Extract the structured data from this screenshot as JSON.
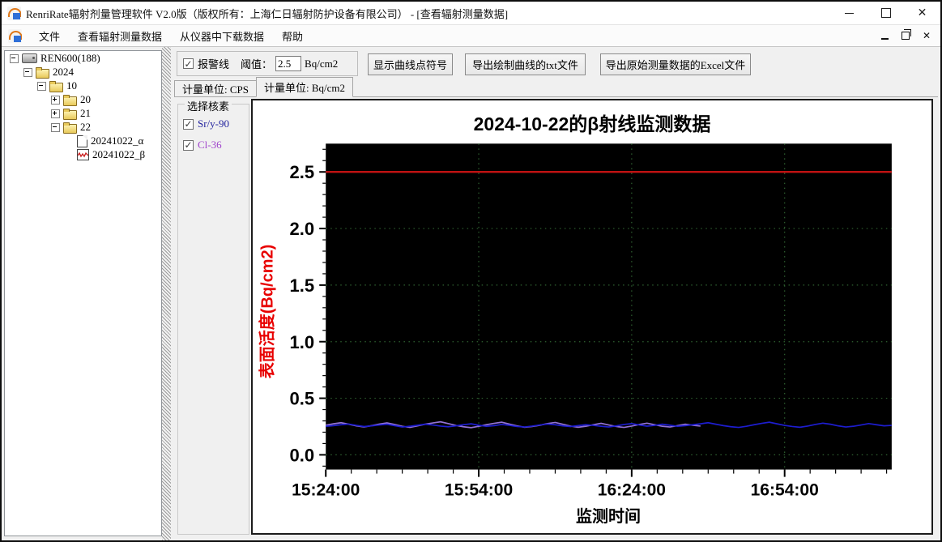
{
  "window": {
    "title": "RenriRate辐射剂量管理软件 V2.0版（版权所有：上海仁日辐射防护设备有限公司） - [查看辐射测量数据]"
  },
  "menu": {
    "items": [
      "文件",
      "查看辐射测量数据",
      "从仪器中下载数据",
      "帮助"
    ]
  },
  "tree": {
    "items": [
      {
        "label": "REN600(188)",
        "level": 0,
        "expander": "minus",
        "icon": "device"
      },
      {
        "label": "2024",
        "level": 1,
        "expander": "minus",
        "icon": "folder"
      },
      {
        "label": "10",
        "level": 2,
        "expander": "minus",
        "icon": "folder"
      },
      {
        "label": "20",
        "level": 3,
        "expander": "plus",
        "icon": "folder"
      },
      {
        "label": "21",
        "level": 3,
        "expander": "plus",
        "icon": "folder"
      },
      {
        "label": "22",
        "level": 3,
        "expander": "minus",
        "icon": "folder"
      },
      {
        "label": "20241022_α",
        "level": 4,
        "expander": "none",
        "icon": "doc"
      },
      {
        "label": "20241022_β",
        "level": 4,
        "expander": "none",
        "icon": "chart"
      }
    ]
  },
  "toolbar": {
    "alarm_checkbox_label": "报警线",
    "alarm_checked": true,
    "threshold_label": "阈值：",
    "threshold_value": "2.5",
    "threshold_unit": "Bq/cm2",
    "show_points_button": "显示曲线点符号",
    "export_txt_button": "导出绘制曲线的txt文件",
    "export_excel_button": "导出原始测量数据的Excel文件"
  },
  "tabs": [
    {
      "label": "计量单位: CPS",
      "active": false
    },
    {
      "label": "计量单位: Bq/cm2",
      "active": true
    }
  ],
  "nuclide_panel": {
    "title": "选择核素",
    "items": [
      {
        "label": "Sr/y-90",
        "checked": true,
        "color": "#22229e"
      },
      {
        "label": "Cl-36",
        "checked": true,
        "color": "#a044cc"
      }
    ]
  },
  "chart_data": {
    "type": "line",
    "title": "2024-10-22的β射线监测数据",
    "xlabel": "监测时间",
    "ylabel": "表面活度(Bq/cm2)",
    "plot_bg": "#000000",
    "grid_color": "#2f6231",
    "grid": true,
    "ylim": [
      -0.13,
      2.75
    ],
    "y_ticks": [
      0.0,
      0.5,
      1.0,
      1.5,
      2.0,
      2.5
    ],
    "y_minor_step": 0.1,
    "x_range_minutes": [
      0,
      111
    ],
    "x_ticks": [
      {
        "minute": 0,
        "label": "15:24:00"
      },
      {
        "minute": 30,
        "label": "15:54:00"
      },
      {
        "minute": 60,
        "label": "16:24:00"
      },
      {
        "minute": 90,
        "label": "16:54:00"
      }
    ],
    "x_minor_step_minutes": 5,
    "alarm_line": {
      "value": 2.5,
      "color": "#c01212"
    },
    "series": [
      {
        "name": "Cl-36",
        "color": "#9272d6",
        "x_start_min": 0,
        "x_step_min": 1.5,
        "values": [
          0.262,
          0.274,
          0.284,
          0.27,
          0.256,
          0.246,
          0.258,
          0.272,
          0.282,
          0.268,
          0.252,
          0.242,
          0.256,
          0.27,
          0.282,
          0.292,
          0.276,
          0.26,
          0.248,
          0.24,
          0.252,
          0.266,
          0.278,
          0.288,
          0.272,
          0.256,
          0.244,
          0.25,
          0.262,
          0.276,
          0.286,
          0.27,
          0.254,
          0.244,
          0.252,
          0.266,
          0.278,
          0.264,
          0.25,
          0.242,
          0.254,
          0.268,
          0.28,
          0.266,
          0.252,
          0.246,
          0.258,
          0.27,
          0.262,
          0.254
        ]
      },
      {
        "name": "Sr/y-90",
        "color": "#1d1dd0",
        "x_start_min": 0,
        "x_step_min": 1.5,
        "values": [
          0.252,
          0.258,
          0.266,
          0.272,
          0.26,
          0.25,
          0.256,
          0.264,
          0.27,
          0.258,
          0.246,
          0.252,
          0.262,
          0.27,
          0.264,
          0.254,
          0.248,
          0.256,
          0.266,
          0.274,
          0.262,
          0.252,
          0.258,
          0.268,
          0.262,
          0.25,
          0.246,
          0.254,
          0.264,
          0.272,
          0.266,
          0.256,
          0.25,
          0.258,
          0.266,
          0.26,
          0.252,
          0.246,
          0.256,
          0.268,
          0.276,
          0.264,
          0.254,
          0.26,
          0.27,
          0.262,
          0.252,
          0.258,
          0.266,
          0.274,
          0.284,
          0.27,
          0.258,
          0.248,
          0.242,
          0.252,
          0.266,
          0.278,
          0.288,
          0.274,
          0.26,
          0.25,
          0.244,
          0.254,
          0.268,
          0.28,
          0.27,
          0.256,
          0.246,
          0.252,
          0.264,
          0.276,
          0.266,
          0.256,
          0.26
        ]
      }
    ]
  }
}
